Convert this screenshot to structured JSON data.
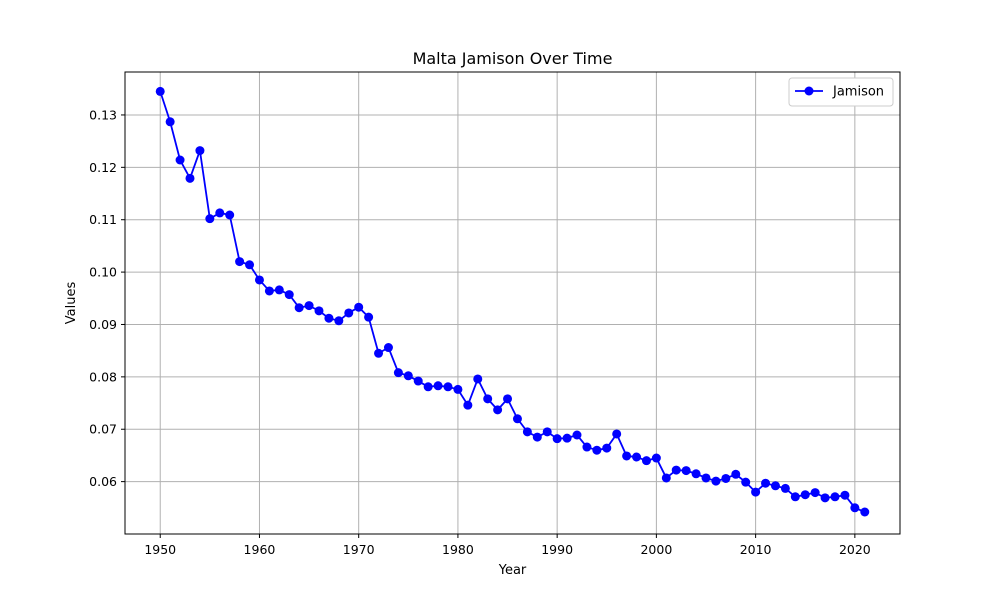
{
  "chart_data": {
    "type": "line",
    "title": "Malta Jamison Over Time",
    "xlabel": "Year",
    "ylabel": "Values",
    "xlim": [
      1946.45,
      2024.55
    ],
    "ylim": [
      0.05,
      0.1382
    ],
    "xticks": [
      1950,
      1960,
      1970,
      1980,
      1990,
      2000,
      2010,
      2020
    ],
    "yticks": [
      0.06,
      0.07,
      0.08,
      0.09,
      0.1,
      0.11,
      0.12,
      0.13
    ],
    "ytick_labels": [
      "0.06",
      "0.07",
      "0.08",
      "0.09",
      "0.10",
      "0.11",
      "0.12",
      "0.13"
    ],
    "grid": true,
    "legend_position": "top-right",
    "series": [
      {
        "name": "Jamison",
        "color": "#0000ff",
        "marker": "circle",
        "x": [
          1950,
          1951,
          1952,
          1953,
          1954,
          1955,
          1956,
          1957,
          1958,
          1959,
          1960,
          1961,
          1962,
          1963,
          1964,
          1965,
          1966,
          1967,
          1968,
          1969,
          1970,
          1971,
          1972,
          1973,
          1974,
          1975,
          1976,
          1977,
          1978,
          1979,
          1980,
          1981,
          1982,
          1983,
          1984,
          1985,
          1986,
          1987,
          1988,
          1989,
          1990,
          1991,
          1992,
          1993,
          1994,
          1995,
          1996,
          1997,
          1998,
          1999,
          2000,
          2001,
          2002,
          2003,
          2004,
          2005,
          2006,
          2007,
          2008,
          2009,
          2010,
          2011,
          2012,
          2013,
          2014,
          2015,
          2016,
          2017,
          2018,
          2019,
          2020,
          2021
        ],
        "values": [
          0.1345,
          0.1287,
          0.1214,
          0.1179,
          0.1232,
          0.1102,
          0.1113,
          0.1109,
          0.102,
          0.1014,
          0.0985,
          0.0964,
          0.0966,
          0.0957,
          0.0932,
          0.0936,
          0.0926,
          0.0912,
          0.0907,
          0.0922,
          0.0933,
          0.0914,
          0.0845,
          0.0856,
          0.0808,
          0.0802,
          0.0792,
          0.0781,
          0.0783,
          0.0781,
          0.0776,
          0.0746,
          0.0796,
          0.0758,
          0.0737,
          0.0758,
          0.072,
          0.0695,
          0.0685,
          0.0695,
          0.0682,
          0.0683,
          0.0689,
          0.0666,
          0.066,
          0.0664,
          0.0691,
          0.0649,
          0.0647,
          0.064,
          0.0645,
          0.0607,
          0.0622,
          0.0621,
          0.0615,
          0.0607,
          0.0601,
          0.0606,
          0.0614,
          0.0599,
          0.058,
          0.0597,
          0.0592,
          0.0587,
          0.0571,
          0.0575,
          0.0579,
          0.0569,
          0.0571,
          0.0574,
          0.055,
          0.0542
        ]
      }
    ]
  }
}
